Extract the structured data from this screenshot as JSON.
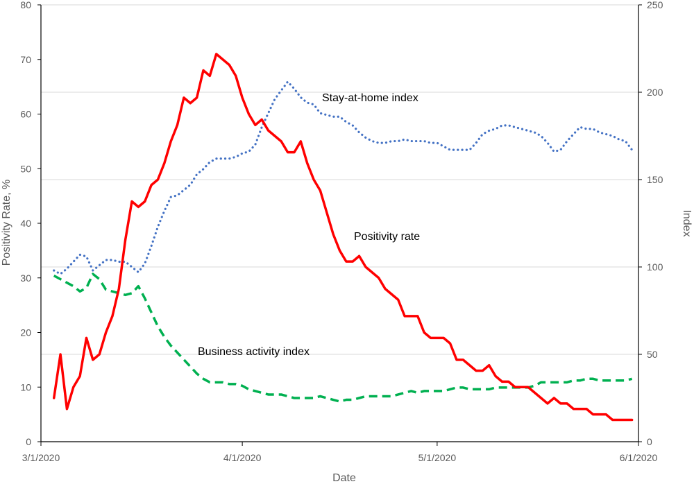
{
  "chart_data": {
    "type": "line",
    "xlabel": "Date",
    "ylabel_left": "Positivity Rate, %",
    "ylabel_right": "Index",
    "x_ticks": [
      "3/1/2020",
      "4/1/2020",
      "5/1/2020",
      "6/1/2020"
    ],
    "y_left_range": [
      0,
      80
    ],
    "y_left_ticks": [
      0,
      10,
      20,
      30,
      40,
      50,
      60,
      70,
      80
    ],
    "y_right_range": [
      0,
      250
    ],
    "y_right_ticks": [
      0,
      50,
      100,
      150,
      200,
      250
    ],
    "grid": "horizontal, right axis",
    "annotations": {
      "stay_at_home": "Stay-at-home index",
      "positivity": "Positivity rate",
      "business": "Business activity index"
    },
    "series": [
      {
        "key": "positivity",
        "axis": "left",
        "color": "#ff0000",
        "style": "solid",
        "points": [
          [
            "2020-03-03",
            8
          ],
          [
            "2020-03-04",
            16
          ],
          [
            "2020-03-05",
            6
          ],
          [
            "2020-03-06",
            10
          ],
          [
            "2020-03-07",
            12
          ],
          [
            "2020-03-08",
            19
          ],
          [
            "2020-03-09",
            15
          ],
          [
            "2020-03-10",
            16
          ],
          [
            "2020-03-11",
            20
          ],
          [
            "2020-03-12",
            23
          ],
          [
            "2020-03-13",
            28
          ],
          [
            "2020-03-14",
            37
          ],
          [
            "2020-03-15",
            44
          ],
          [
            "2020-03-16",
            43
          ],
          [
            "2020-03-17",
            44
          ],
          [
            "2020-03-18",
            47
          ],
          [
            "2020-03-19",
            48
          ],
          [
            "2020-03-20",
            51
          ],
          [
            "2020-03-21",
            55
          ],
          [
            "2020-03-22",
            58
          ],
          [
            "2020-03-23",
            63
          ],
          [
            "2020-03-24",
            62
          ],
          [
            "2020-03-25",
            63
          ],
          [
            "2020-03-26",
            68
          ],
          [
            "2020-03-27",
            67
          ],
          [
            "2020-03-28",
            71
          ],
          [
            "2020-03-29",
            70
          ],
          [
            "2020-03-30",
            69
          ],
          [
            "2020-03-31",
            67
          ],
          [
            "2020-04-01",
            63
          ],
          [
            "2020-04-02",
            60
          ],
          [
            "2020-04-03",
            58
          ],
          [
            "2020-04-04",
            59
          ],
          [
            "2020-04-05",
            57
          ],
          [
            "2020-04-06",
            56
          ],
          [
            "2020-04-07",
            55
          ],
          [
            "2020-04-08",
            53
          ],
          [
            "2020-04-09",
            53
          ],
          [
            "2020-04-10",
            55
          ],
          [
            "2020-04-11",
            51
          ],
          [
            "2020-04-12",
            48
          ],
          [
            "2020-04-13",
            46
          ],
          [
            "2020-04-14",
            42
          ],
          [
            "2020-04-15",
            38
          ],
          [
            "2020-04-16",
            35
          ],
          [
            "2020-04-17",
            33
          ],
          [
            "2020-04-18",
            33
          ],
          [
            "2020-04-19",
            34
          ],
          [
            "2020-04-20",
            32
          ],
          [
            "2020-04-21",
            31
          ],
          [
            "2020-04-22",
            30
          ],
          [
            "2020-04-23",
            28
          ],
          [
            "2020-04-24",
            27
          ],
          [
            "2020-04-25",
            26
          ],
          [
            "2020-04-26",
            23
          ],
          [
            "2020-04-27",
            23
          ],
          [
            "2020-04-28",
            23
          ],
          [
            "2020-04-29",
            20
          ],
          [
            "2020-04-30",
            19
          ],
          [
            "2020-05-01",
            19
          ],
          [
            "2020-05-02",
            19
          ],
          [
            "2020-05-03",
            18
          ],
          [
            "2020-05-04",
            15
          ],
          [
            "2020-05-05",
            15
          ],
          [
            "2020-05-06",
            14
          ],
          [
            "2020-05-07",
            13
          ],
          [
            "2020-05-08",
            13
          ],
          [
            "2020-05-09",
            14
          ],
          [
            "2020-05-10",
            12
          ],
          [
            "2020-05-11",
            11
          ],
          [
            "2020-05-12",
            11
          ],
          [
            "2020-05-13",
            10
          ],
          [
            "2020-05-14",
            10
          ],
          [
            "2020-05-15",
            10
          ],
          [
            "2020-05-16",
            9
          ],
          [
            "2020-05-17",
            8
          ],
          [
            "2020-05-18",
            7
          ],
          [
            "2020-05-19",
            8
          ],
          [
            "2020-05-20",
            7
          ],
          [
            "2020-05-21",
            7
          ],
          [
            "2020-05-22",
            6
          ],
          [
            "2020-05-23",
            6
          ],
          [
            "2020-05-24",
            6
          ],
          [
            "2020-05-25",
            5
          ],
          [
            "2020-05-26",
            5
          ],
          [
            "2020-05-27",
            5
          ],
          [
            "2020-05-28",
            4
          ],
          [
            "2020-05-29",
            4
          ],
          [
            "2020-05-30",
            4
          ],
          [
            "2020-05-31",
            4
          ]
        ]
      },
      {
        "key": "stay_at_home",
        "axis": "right",
        "color": "#4472c4",
        "style": "dotted",
        "points": [
          [
            "2020-03-03",
            98
          ],
          [
            "2020-03-04",
            96
          ],
          [
            "2020-03-05",
            99
          ],
          [
            "2020-03-06",
            103
          ],
          [
            "2020-03-07",
            107
          ],
          [
            "2020-03-08",
            106
          ],
          [
            "2020-03-09",
            98
          ],
          [
            "2020-03-10",
            101
          ],
          [
            "2020-03-11",
            104
          ],
          [
            "2020-03-12",
            104
          ],
          [
            "2020-03-13",
            103
          ],
          [
            "2020-03-14",
            103
          ],
          [
            "2020-03-15",
            100
          ],
          [
            "2020-03-16",
            97
          ],
          [
            "2020-03-17",
            102
          ],
          [
            "2020-03-18",
            112
          ],
          [
            "2020-03-19",
            123
          ],
          [
            "2020-03-20",
            132
          ],
          [
            "2020-03-21",
            140
          ],
          [
            "2020-03-22",
            141
          ],
          [
            "2020-03-23",
            144
          ],
          [
            "2020-03-24",
            147
          ],
          [
            "2020-03-25",
            153
          ],
          [
            "2020-03-26",
            156
          ],
          [
            "2020-03-27",
            160
          ],
          [
            "2020-03-28",
            162
          ],
          [
            "2020-03-29",
            162
          ],
          [
            "2020-03-30",
            162
          ],
          [
            "2020-03-31",
            163
          ],
          [
            "2020-04-01",
            165
          ],
          [
            "2020-04-02",
            166
          ],
          [
            "2020-04-03",
            170
          ],
          [
            "2020-04-04",
            180
          ],
          [
            "2020-04-05",
            188
          ],
          [
            "2020-04-06",
            196
          ],
          [
            "2020-04-07",
            201
          ],
          [
            "2020-04-08",
            206
          ],
          [
            "2020-04-09",
            202
          ],
          [
            "2020-04-10",
            197
          ],
          [
            "2020-04-11",
            194
          ],
          [
            "2020-04-12",
            193
          ],
          [
            "2020-04-13",
            188
          ],
          [
            "2020-04-14",
            187
          ],
          [
            "2020-04-15",
            186
          ],
          [
            "2020-04-16",
            186
          ],
          [
            "2020-04-17",
            183
          ],
          [
            "2020-04-18",
            181
          ],
          [
            "2020-04-19",
            177
          ],
          [
            "2020-04-20",
            174
          ],
          [
            "2020-04-21",
            172
          ],
          [
            "2020-04-22",
            171
          ],
          [
            "2020-04-23",
            171
          ],
          [
            "2020-04-24",
            172
          ],
          [
            "2020-04-25",
            172
          ],
          [
            "2020-04-26",
            173
          ],
          [
            "2020-04-27",
            172
          ],
          [
            "2020-04-28",
            172
          ],
          [
            "2020-04-29",
            172
          ],
          [
            "2020-04-30",
            171
          ],
          [
            "2020-05-01",
            171
          ],
          [
            "2020-05-02",
            169
          ],
          [
            "2020-05-03",
            167
          ],
          [
            "2020-05-04",
            167
          ],
          [
            "2020-05-05",
            167
          ],
          [
            "2020-05-06",
            167
          ],
          [
            "2020-05-07",
            171
          ],
          [
            "2020-05-08",
            176
          ],
          [
            "2020-05-09",
            178
          ],
          [
            "2020-05-10",
            179
          ],
          [
            "2020-05-11",
            181
          ],
          [
            "2020-05-12",
            181
          ],
          [
            "2020-05-13",
            180
          ],
          [
            "2020-05-14",
            179
          ],
          [
            "2020-05-15",
            178
          ],
          [
            "2020-05-16",
            177
          ],
          [
            "2020-05-17",
            175
          ],
          [
            "2020-05-18",
            171
          ],
          [
            "2020-05-19",
            166
          ],
          [
            "2020-05-20",
            167
          ],
          [
            "2020-05-21",
            172
          ],
          [
            "2020-05-22",
            176
          ],
          [
            "2020-05-23",
            180
          ],
          [
            "2020-05-24",
            179
          ],
          [
            "2020-05-25",
            179
          ],
          [
            "2020-05-26",
            177
          ],
          [
            "2020-05-27",
            176
          ],
          [
            "2020-05-28",
            175
          ],
          [
            "2020-05-29",
            173
          ],
          [
            "2020-05-30",
            172
          ],
          [
            "2020-05-31",
            167
          ]
        ]
      },
      {
        "key": "business",
        "axis": "right",
        "color": "#00b050",
        "style": "dashed",
        "points": [
          [
            "2020-03-03",
            95
          ],
          [
            "2020-03-04",
            93
          ],
          [
            "2020-03-05",
            91
          ],
          [
            "2020-03-06",
            89
          ],
          [
            "2020-03-07",
            86
          ],
          [
            "2020-03-08",
            88
          ],
          [
            "2020-03-09",
            96
          ],
          [
            "2020-03-10",
            93
          ],
          [
            "2020-03-11",
            87
          ],
          [
            "2020-03-12",
            86
          ],
          [
            "2020-03-13",
            85
          ],
          [
            "2020-03-14",
            84
          ],
          [
            "2020-03-15",
            85
          ],
          [
            "2020-03-16",
            89
          ],
          [
            "2020-03-17",
            82
          ],
          [
            "2020-03-18",
            74
          ],
          [
            "2020-03-19",
            66
          ],
          [
            "2020-03-20",
            60
          ],
          [
            "2020-03-21",
            55
          ],
          [
            "2020-03-22",
            51
          ],
          [
            "2020-03-23",
            47
          ],
          [
            "2020-03-24",
            43
          ],
          [
            "2020-03-25",
            39
          ],
          [
            "2020-03-26",
            36
          ],
          [
            "2020-03-27",
            34
          ],
          [
            "2020-03-28",
            34
          ],
          [
            "2020-03-29",
            34
          ],
          [
            "2020-03-30",
            33
          ],
          [
            "2020-03-31",
            33
          ],
          [
            "2020-04-01",
            32
          ],
          [
            "2020-04-02",
            30
          ],
          [
            "2020-04-03",
            29
          ],
          [
            "2020-04-04",
            28
          ],
          [
            "2020-04-05",
            27
          ],
          [
            "2020-04-06",
            27
          ],
          [
            "2020-04-07",
            27
          ],
          [
            "2020-04-08",
            26
          ],
          [
            "2020-04-09",
            25
          ],
          [
            "2020-04-10",
            25
          ],
          [
            "2020-04-11",
            25
          ],
          [
            "2020-04-12",
            25
          ],
          [
            "2020-04-13",
            26
          ],
          [
            "2020-04-14",
            25
          ],
          [
            "2020-04-15",
            24
          ],
          [
            "2020-04-16",
            23
          ],
          [
            "2020-04-17",
            24
          ],
          [
            "2020-04-18",
            24
          ],
          [
            "2020-04-19",
            25
          ],
          [
            "2020-04-20",
            26
          ],
          [
            "2020-04-21",
            26
          ],
          [
            "2020-04-22",
            26
          ],
          [
            "2020-04-23",
            26
          ],
          [
            "2020-04-24",
            26
          ],
          [
            "2020-04-25",
            27
          ],
          [
            "2020-04-26",
            28
          ],
          [
            "2020-04-27",
            29
          ],
          [
            "2020-04-28",
            28
          ],
          [
            "2020-04-29",
            29
          ],
          [
            "2020-04-30",
            29
          ],
          [
            "2020-05-01",
            29
          ],
          [
            "2020-05-02",
            29
          ],
          [
            "2020-05-03",
            30
          ],
          [
            "2020-05-04",
            31
          ],
          [
            "2020-05-05",
            31
          ],
          [
            "2020-05-06",
            30
          ],
          [
            "2020-05-07",
            30
          ],
          [
            "2020-05-08",
            30
          ],
          [
            "2020-05-09",
            30
          ],
          [
            "2020-05-10",
            31
          ],
          [
            "2020-05-11",
            31
          ],
          [
            "2020-05-12",
            31
          ],
          [
            "2020-05-13",
            31
          ],
          [
            "2020-05-14",
            31
          ],
          [
            "2020-05-15",
            31
          ],
          [
            "2020-05-16",
            32
          ],
          [
            "2020-05-17",
            34
          ],
          [
            "2020-05-18",
            34
          ],
          [
            "2020-05-19",
            34
          ],
          [
            "2020-05-20",
            34
          ],
          [
            "2020-05-21",
            34
          ],
          [
            "2020-05-22",
            35
          ],
          [
            "2020-05-23",
            35
          ],
          [
            "2020-05-24",
            36
          ],
          [
            "2020-05-25",
            36
          ],
          [
            "2020-05-26",
            35
          ],
          [
            "2020-05-27",
            35
          ],
          [
            "2020-05-28",
            35
          ],
          [
            "2020-05-29",
            35
          ],
          [
            "2020-05-30",
            35
          ],
          [
            "2020-05-31",
            36
          ]
        ]
      }
    ]
  }
}
